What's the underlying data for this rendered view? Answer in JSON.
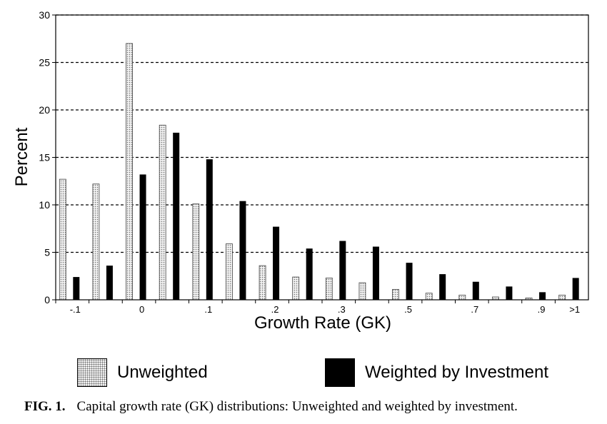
{
  "chart_data": {
    "type": "bar",
    "xlabel": "Growth Rate (GK)",
    "ylabel": "Percent",
    "ylim": [
      0,
      30
    ],
    "yticks": [
      "0",
      "5",
      "10",
      "15",
      "20",
      "25",
      "30"
    ],
    "grid": "horizontal dashed",
    "categories": [
      "-.1",
      "",
      "0",
      "",
      ".1",
      "",
      ".2",
      "",
      ".3",
      "",
      ".5",
      "",
      ".7",
      "",
      ".9",
      ">1"
    ],
    "series": [
      {
        "name": "Unweighted",
        "pattern": "dotted",
        "values": [
          12.7,
          12.2,
          27.0,
          18.4,
          10.1,
          5.9,
          3.6,
          2.4,
          2.3,
          1.8,
          1.1,
          0.7,
          0.5,
          0.3,
          0.2,
          0.5
        ]
      },
      {
        "name": "Weighted by Investment",
        "color": "#000000",
        "values": [
          2.4,
          3.6,
          13.2,
          17.6,
          14.8,
          10.4,
          7.7,
          5.4,
          6.2,
          5.6,
          3.9,
          2.7,
          1.9,
          1.4,
          0.8,
          2.3
        ]
      }
    ],
    "legend_position": "bottom"
  },
  "legend": {
    "unweighted_label": "Unweighted",
    "weighted_label": "Weighted by Investment"
  },
  "caption": {
    "fig_label": "FIG. 1.",
    "text": "Capital growth rate (GK) distributions: Unweighted and weighted by investment."
  }
}
